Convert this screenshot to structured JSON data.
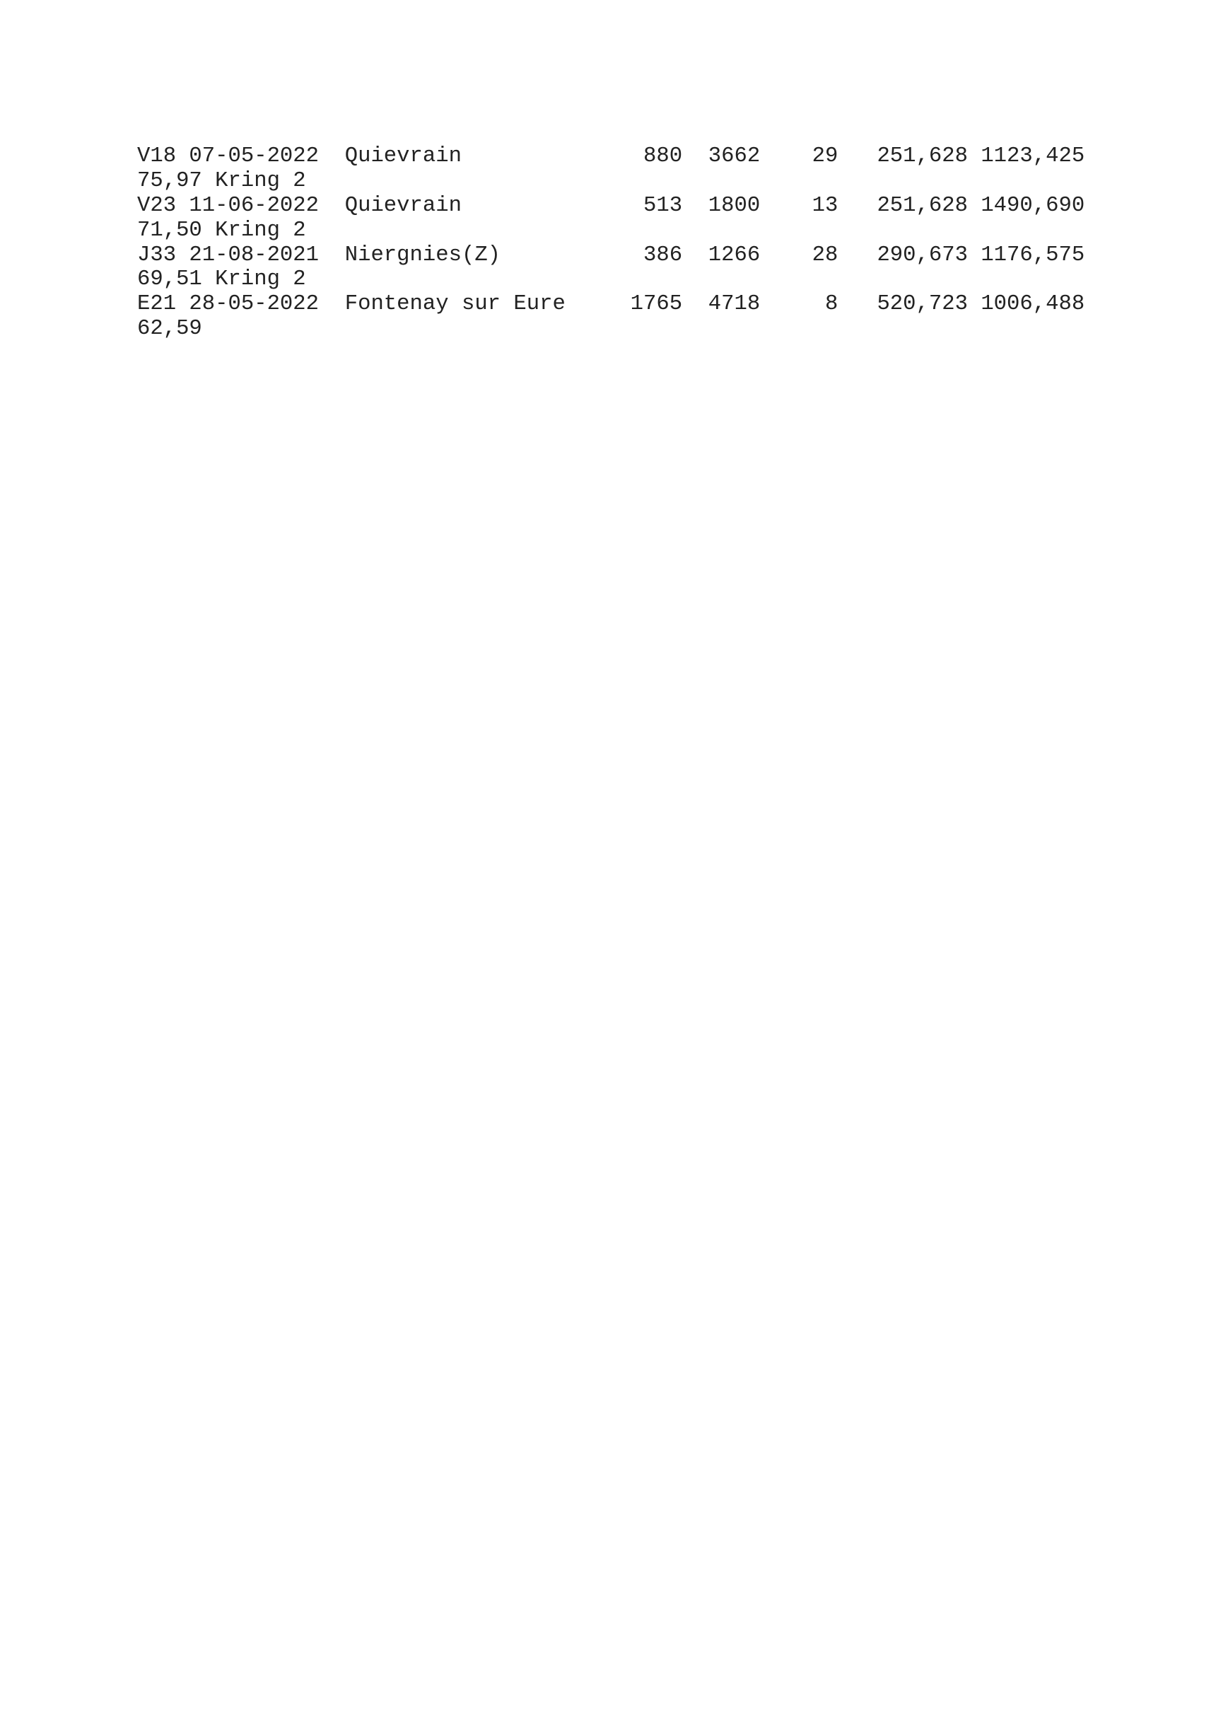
{
  "records": [
    {
      "code": "V18",
      "date": "07-05-2022",
      "place": "Quievrain",
      "n1": "880",
      "n2": "3662",
      "n3": "29",
      "n4": "251,628",
      "n5": "1123,425",
      "cont": "75,97 Kring 2"
    },
    {
      "code": "V23",
      "date": "11-06-2022",
      "place": "Quievrain",
      "n1": "513",
      "n2": "1800",
      "n3": "13",
      "n4": "251,628",
      "n5": "1490,690",
      "cont": "71,50 Kring 2"
    },
    {
      "code": "J33",
      "date": "21-08-2021",
      "place": "Niergnies(Z)",
      "n1": "386",
      "n2": "1266",
      "n3": "28",
      "n4": "290,673",
      "n5": "1176,575",
      "cont": "69,51 Kring 2"
    },
    {
      "code": "E21",
      "date": "28-05-2022",
      "place": "Fontenay sur Eure",
      "n1": "1765",
      "n2": "4718",
      "n3": "8",
      "n4": "520,723",
      "n5": "1006,488",
      "cont": "62,59"
    }
  ]
}
